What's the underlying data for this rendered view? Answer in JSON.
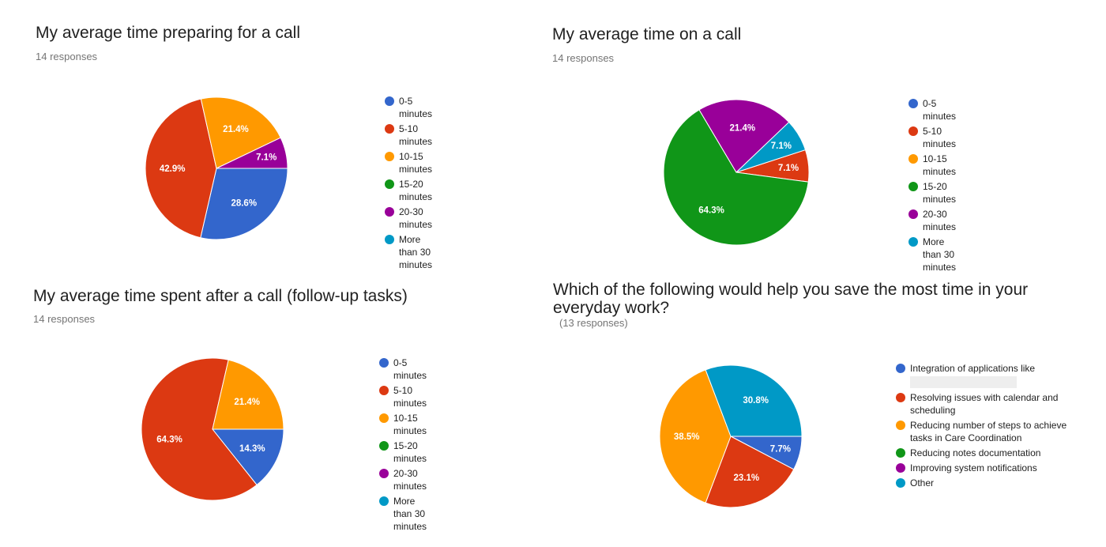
{
  "colors": {
    "blue": "#3366CC",
    "red": "#DC3912",
    "orange": "#FF9900",
    "green": "#109618",
    "purple": "#990099",
    "teal": "#0099C6"
  },
  "chart_data": [
    {
      "type": "pie",
      "title": "My average time preparing for a call",
      "subtitle": "14 responses",
      "legend_position": "right",
      "categories": [
        "0-5 minutes",
        "5-10 minutes",
        "10-15 minutes",
        "15-20 minutes",
        "20-30 minutes",
        "More than 30 minutes"
      ],
      "values": [
        28.6,
        42.9,
        21.4,
        0,
        7.1,
        0
      ],
      "slice_labels": [
        "28.6%",
        "42.9%",
        "21.4%",
        "",
        "7.1%",
        ""
      ]
    },
    {
      "type": "pie",
      "title": "My average time on a call",
      "subtitle": "14 responses",
      "legend_position": "right",
      "categories": [
        "0-5 minutes",
        "5-10 minutes",
        "10-15 minutes",
        "15-20 minutes",
        "20-30 minutes",
        "More than 30 minutes"
      ],
      "values": [
        0,
        7.1,
        0,
        64.3,
        21.4,
        7.1
      ],
      "slice_labels": [
        "",
        "7.1%",
        "",
        "64.3%",
        "21.4%",
        "7.1%"
      ]
    },
    {
      "type": "pie",
      "title": "My average time spent after a call (follow-up tasks)",
      "subtitle": "14 responses",
      "legend_position": "right",
      "categories": [
        "0-5 minutes",
        "5-10 minutes",
        "10-15 minutes",
        "15-20 minutes",
        "20-30 minutes",
        "More than 30 minutes"
      ],
      "values": [
        14.3,
        64.3,
        21.4,
        0,
        0,
        0
      ],
      "slice_labels": [
        "14.3%",
        "64.3%",
        "21.4%",
        "",
        "",
        ""
      ]
    },
    {
      "type": "pie",
      "title": "Which of the following would help you save the most time in your everyday work?",
      "subtitle": "(13 responses)",
      "legend_position": "right",
      "categories": [
        "Integration of applications like",
        "Resolving issues with calendar and scheduling",
        "Reducing number of steps to achieve tasks in Care Coordination",
        "Reducing notes documentation",
        "Improving system notifications",
        "Other"
      ],
      "values": [
        7.7,
        23.1,
        38.5,
        0,
        0,
        30.8
      ],
      "slice_labels": [
        "7.7%",
        "23.1%",
        "38.5%",
        "",
        "",
        "30.8%"
      ]
    }
  ]
}
